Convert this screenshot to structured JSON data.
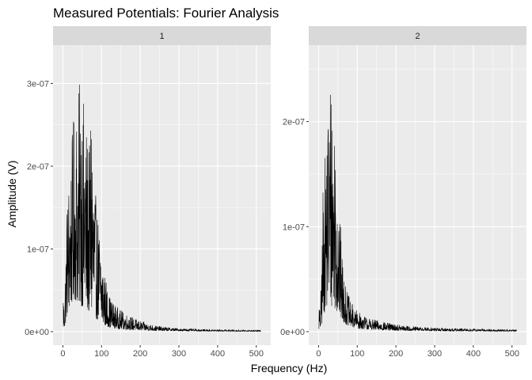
{
  "chart_data": {
    "type": "line",
    "title": "Measured Potentials: Fourier Analysis",
    "xlabel": "Frequency (Hz)",
    "ylabel": "Amplitude (V)",
    "xlim": [
      0,
      512
    ],
    "x_ticks": [
      0,
      100,
      200,
      300,
      400,
      500
    ],
    "x_tick_labels": [
      "0",
      "100",
      "200",
      "300",
      "400",
      "500"
    ],
    "grid": true,
    "legend": "none",
    "colors": {
      "line": "#000000",
      "panel": "#ebebeb",
      "strip": "#d9d9d9",
      "grid": "#ffffff"
    },
    "panels": [
      {
        "strip_label": "1",
        "ylim": [
          0,
          3.3e-07
        ],
        "y_ticks": [
          0,
          1e-07,
          2e-07,
          3e-07
        ],
        "y_tick_labels": [
          "0e+00",
          "1e-07",
          "2e-07",
          "3e-07"
        ],
        "envelope": {
          "x": [
            1,
            3,
            5,
            8,
            10,
            12,
            15,
            18,
            20,
            22,
            25,
            28,
            30,
            33,
            35,
            38,
            40,
            42,
            45,
            48,
            50,
            52,
            55,
            58,
            60,
            62,
            65,
            68,
            70,
            72,
            75,
            78,
            80,
            85,
            90,
            95,
            100,
            105,
            110,
            115,
            120,
            125,
            130,
            140,
            150,
            160,
            170,
            180,
            190,
            200,
            220,
            240,
            260,
            280,
            300,
            330,
            360,
            400,
            450,
            512
          ],
          "upper": [
            5.8e-08,
            3.6e-08,
            4.5e-08,
            1.15e-07,
            1.52e-07,
            1.68e-07,
            1.9e-07,
            1.95e-07,
            2.2e-07,
            2.12e-07,
            2.45e-07,
            2.6e-07,
            2.75e-07,
            2.48e-07,
            2.8e-07,
            2.72e-07,
            3.02e-07,
            2.95e-07,
            3.1e-07,
            3.32e-07,
            3.25e-07,
            2.75e-07,
            2.9e-07,
            3e-07,
            2.45e-07,
            2.6e-07,
            2.2e-07,
            2.4e-07,
            2.1e-07,
            2.85e-07,
            3.05e-07,
            2.4e-07,
            2e-07,
            1.65e-07,
            1.45e-07,
            1.2e-07,
            1.05e-07,
            8.5e-08,
            6.8e-08,
            5.5e-08,
            4.5e-08,
            4e-08,
            3.6e-08,
            3e-08,
            2.6e-08,
            2.3e-08,
            2e-08,
            1.8e-08,
            1.5e-08,
            1.3e-08,
            1e-08,
            7.5e-09,
            6e-09,
            5e-09,
            4e-09,
            3.5e-09,
            3e-09,
            2.6e-09,
            2.2e-09,
            1.8e-09
          ],
          "lower": [
            2e-09,
            3e-09,
            5e-09,
            1.2e-08,
            1.8e-08,
            2.2e-08,
            2.5e-08,
            2.8e-08,
            3e-08,
            3.2e-08,
            3.5e-08,
            3.6e-08,
            3.8e-08,
            3.8e-08,
            3.6e-08,
            3.5e-08,
            3.4e-08,
            3.3e-08,
            3.2e-08,
            3.1e-08,
            3e-08,
            2.9e-08,
            2.8e-08,
            2.7e-08,
            2.6e-08,
            2.5e-08,
            2.4e-08,
            2.3e-08,
            2.2e-08,
            2.1e-08,
            2e-08,
            1.9e-08,
            1.8e-08,
            1.6e-08,
            1.4e-08,
            1.2e-08,
            1e-08,
            8e-09,
            7e-09,
            6e-09,
            5e-09,
            4.5e-09,
            4e-09,
            3.5e-09,
            3e-09,
            2.5e-09,
            2.2e-09,
            2e-09,
            1.8e-09,
            1.6e-09,
            1.3e-09,
            1.1e-09,
            1e-09,
            9e-10,
            8e-10,
            7e-10,
            6e-10,
            5e-10,
            4e-10,
            3e-10
          ]
        }
      },
      {
        "strip_label": "2",
        "ylim": [
          0,
          2.6e-07
        ],
        "y_ticks": [
          0,
          1e-07,
          2e-07
        ],
        "y_tick_labels": [
          "0e+00",
          "1e-07",
          "2e-07"
        ],
        "envelope": {
          "x": [
            1,
            3,
            5,
            8,
            10,
            12,
            15,
            18,
            20,
            22,
            25,
            28,
            30,
            32,
            35,
            38,
            40,
            42,
            45,
            48,
            50,
            52,
            55,
            58,
            60,
            62,
            65,
            68,
            70,
            75,
            80,
            85,
            90,
            95,
            100,
            110,
            120,
            130,
            140,
            150,
            160,
            180,
            200,
            220,
            250,
            280,
            300,
            350,
            400,
            450,
            512
          ],
          "upper": [
            3e-08,
            2.2e-08,
            2.5e-08,
            7e-08,
            1e-07,
            1.55e-07,
            1.62e-07,
            1.7e-07,
            2e-07,
            2.15e-07,
            2.32e-07,
            2.5e-07,
            2.6e-07,
            2.45e-07,
            2.48e-07,
            2.2e-07,
            2.3e-07,
            2.18e-07,
            2.05e-07,
            1.75e-07,
            1.6e-07,
            1.35e-07,
            1.1e-07,
            9.5e-08,
            8.2e-08,
            7e-08,
            6e-08,
            5.2e-08,
            4.5e-08,
            3.8e-08,
            3.2e-08,
            2.8e-08,
            2.5e-08,
            2.2e-08,
            2e-08,
            1.7e-08,
            1.5e-08,
            1.3e-08,
            1.2e-08,
            1.1e-08,
            1e-08,
            8.5e-09,
            7e-09,
            6e-09,
            5e-09,
            4.2e-09,
            3.8e-09,
            3.2e-09,
            2.8e-09,
            2.4e-09,
            2e-09
          ],
          "lower": [
            2e-09,
            2e-09,
            3e-09,
            6e-09,
            1e-08,
            1.5e-08,
            1.8e-08,
            2e-08,
            2.2e-08,
            2.4e-08,
            2.5e-08,
            2.6e-08,
            2.6e-08,
            2.5e-08,
            2.4e-08,
            2.3e-08,
            2.2e-08,
            2.1e-08,
            2e-08,
            1.8e-08,
            1.6e-08,
            1.5e-08,
            1.3e-08,
            1.2e-08,
            1.1e-08,
            1e-08,
            9e-09,
            8e-09,
            7e-09,
            6e-09,
            5e-09,
            4.5e-09,
            4e-09,
            3.5e-09,
            3e-09,
            2.5e-09,
            2.2e-09,
            2e-09,
            1.8e-09,
            1.6e-09,
            1.4e-09,
            1.2e-09,
            1e-09,
            9e-10,
            8e-10,
            7e-10,
            6e-10,
            5e-10,
            4e-10,
            3.5e-10,
            3e-10
          ]
        }
      }
    ]
  }
}
